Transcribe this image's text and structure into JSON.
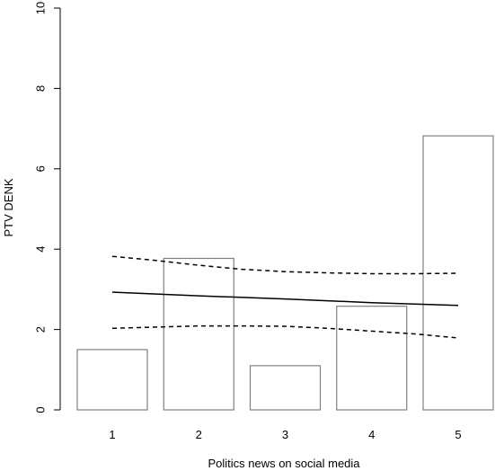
{
  "chart_data": {
    "type": "bar",
    "xlabel": "Politics news on social media",
    "ylabel": "PTV DENK",
    "ylim": [
      0,
      10
    ],
    "yticks": [
      0,
      2,
      4,
      6,
      8,
      10
    ],
    "categories": [
      "1",
      "2",
      "3",
      "4",
      "5"
    ],
    "values": [
      1.5,
      3.77,
      1.1,
      2.58,
      6.82
    ],
    "fit_line": {
      "x": [
        1,
        2,
        3,
        4,
        5
      ],
      "y": [
        2.93,
        2.84,
        2.76,
        2.67,
        2.6
      ]
    },
    "ci_upper": {
      "x": [
        1,
        1.5,
        2,
        2.5,
        3,
        3.5,
        4,
        4.5,
        5
      ],
      "y": [
        3.82,
        3.72,
        3.6,
        3.5,
        3.44,
        3.41,
        3.39,
        3.39,
        3.4
      ]
    },
    "ci_lower": {
      "x": [
        1,
        1.5,
        2,
        2.5,
        3,
        3.5,
        4,
        4.5,
        5
      ],
      "y": [
        2.03,
        2.06,
        2.09,
        2.09,
        2.08,
        2.03,
        1.96,
        1.89,
        1.79
      ]
    },
    "colors": {
      "bar_stroke": "#808080",
      "line": "#000000",
      "axis": "#000000"
    },
    "grid": false,
    "legend": "none"
  }
}
